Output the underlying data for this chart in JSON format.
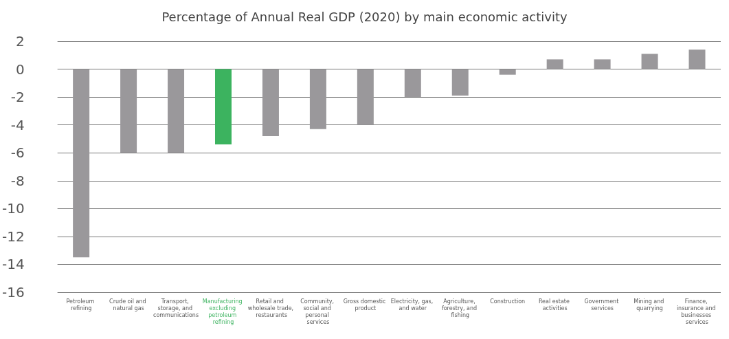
{
  "chart_data": {
    "type": "bar",
    "title": "Percentage of Annual Real GDP (2020) by main economic activity",
    "categories": [
      "Petroleum refining",
      "Crude oil and natural gas",
      "Transport, storage, and communications",
      "Manufacturing excluding petroleum refining",
      "Retail and wholesale trade, restaurants",
      "Community, social and personal services",
      "Gross domestic product",
      "Electricity, gas, and water",
      "Agriculture, forestry, and fishing",
      "Construction",
      "Real estate activities",
      "Government services",
      "Mining and quarrying",
      "Finance, insurance and businesses services"
    ],
    "values": [
      -13.5,
      -6.0,
      -6.0,
      -5.4,
      -4.8,
      -4.3,
      -4.0,
      -2.0,
      -1.9,
      -0.4,
      0.7,
      0.7,
      1.1,
      1.4
    ],
    "colors": [
      "#9a989b",
      "#9a989b",
      "#9a989b",
      "#3cb35f",
      "#9a989b",
      "#9a989b",
      "#9a989b",
      "#9a989b",
      "#9a989b",
      "#9a989b",
      "#9a989b",
      "#9a989b",
      "#9a989b",
      "#9a989b"
    ],
    "ylim": [
      -16,
      2
    ],
    "yticks": [
      -16,
      -14,
      -12,
      -10,
      -8,
      -6,
      -4,
      -2,
      0,
      2
    ],
    "grid": "y"
  }
}
